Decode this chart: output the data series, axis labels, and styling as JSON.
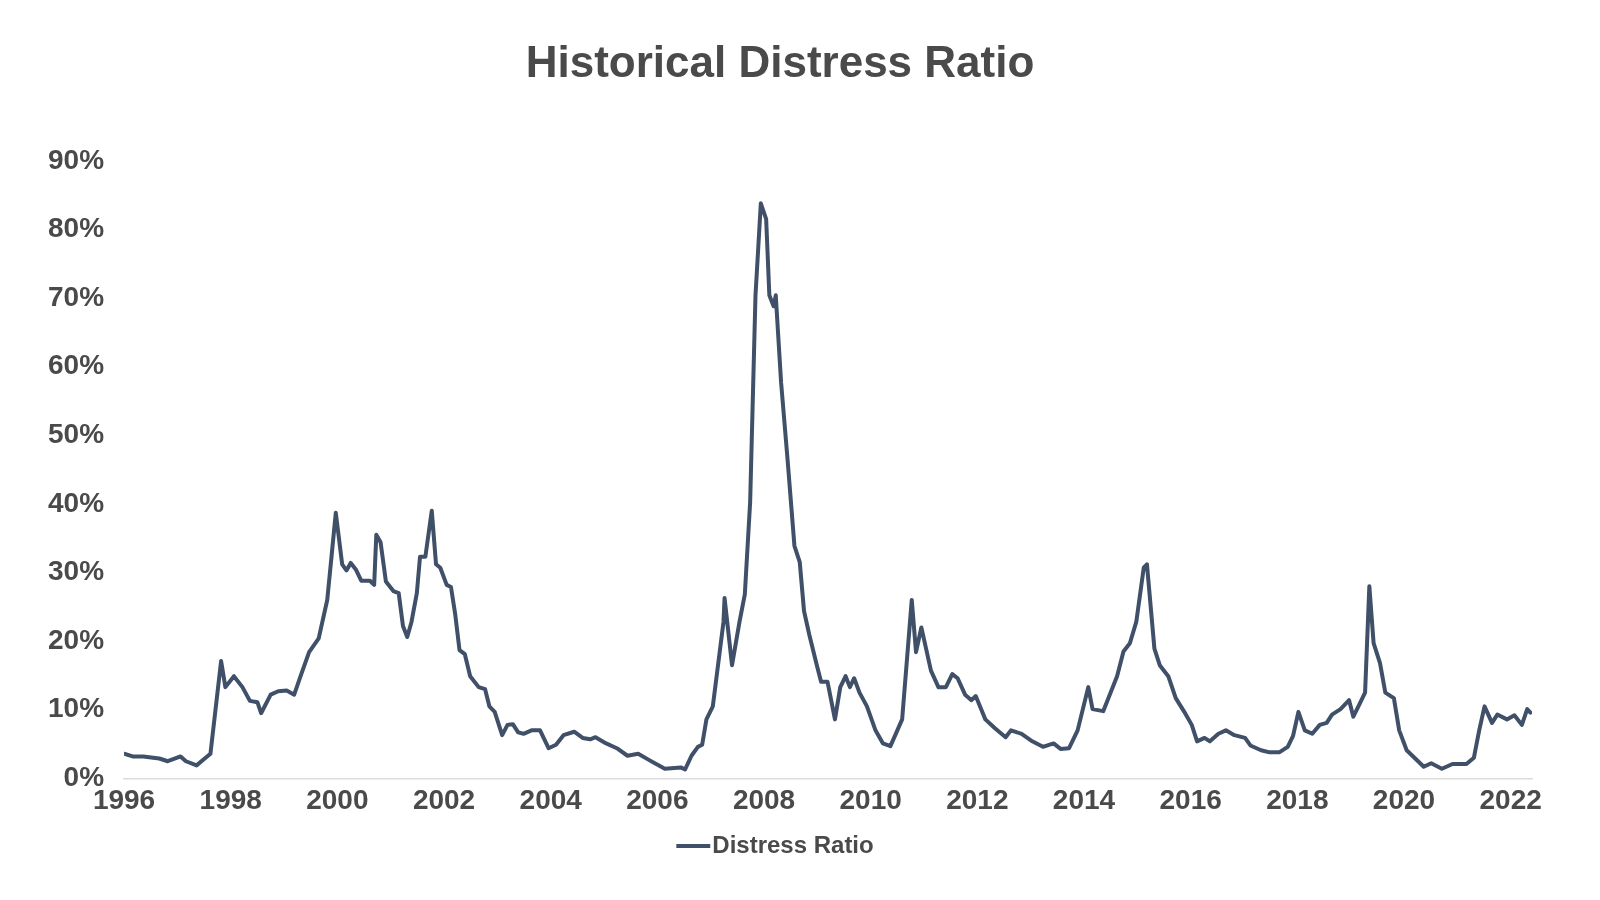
{
  "chart_data": {
    "type": "line",
    "title": "Historical Distress Ratio",
    "x": [
      1996,
      1996.16,
      1996.36,
      1996.66,
      1996.82,
      1997.06,
      1997.16,
      1997.36,
      1997.62,
      1997.82,
      1997.9,
      1998.06,
      1998.22,
      1998.36,
      1998.5,
      1998.57,
      1998.75,
      1998.89,
      1999.05,
      1999.19,
      1999.31,
      1999.47,
      1999.65,
      1999.81,
      1999.89,
      1999.97,
      2000.09,
      2000.17,
      2000.25,
      2000.35,
      2000.45,
      2000.61,
      2000.69,
      2000.73,
      2000.81,
      2000.91,
      2001.05,
      2001.15,
      2001.23,
      2001.31,
      2001.39,
      2001.49,
      2001.55,
      2001.65,
      2001.77,
      2001.85,
      2001.93,
      2002.05,
      2002.13,
      2002.21,
      2002.29,
      2002.39,
      2002.49,
      2002.65,
      2002.77,
      2002.85,
      2002.95,
      2003.09,
      2003.19,
      2003.29,
      2003.39,
      2003.49,
      2003.64,
      2003.8,
      2003.96,
      2004.1,
      2004.24,
      2004.44,
      2004.6,
      2004.74,
      2004.84,
      2005.04,
      2005.24,
      2005.44,
      2005.64,
      2005.84,
      2006.14,
      2006.44,
      2006.52,
      2006.64,
      2006.76,
      2006.84,
      2006.92,
      2007.04,
      2007.24,
      2007.26,
      2007.4,
      2007.54,
      2007.64,
      2007.74,
      2007.84,
      2007.94,
      2008.04,
      2008.1,
      2008.18,
      2008.22,
      2008.32,
      2008.44,
      2008.57,
      2008.67,
      2008.75,
      2008.85,
      2008.99,
      2009.07,
      2009.19,
      2009.33,
      2009.43,
      2009.53,
      2009.61,
      2009.69,
      2009.79,
      2009.93,
      2010.09,
      2010.23,
      2010.37,
      2010.59,
      2010.77,
      2010.85,
      2010.95,
      2011.13,
      2011.27,
      2011.41,
      2011.53,
      2011.63,
      2011.77,
      2011.89,
      2011.97,
      2012.07,
      2012.15,
      2012.33,
      2012.53,
      2012.63,
      2012.83,
      2013.03,
      2013.23,
      2013.43,
      2013.56,
      2013.72,
      2013.88,
      2014.08,
      2014.16,
      2014.36,
      2014.62,
      2014.74,
      2014.86,
      2014.98,
      2015.12,
      2015.18,
      2015.32,
      2015.42,
      2015.58,
      2015.72,
      2015.88,
      2016.02,
      2016.12,
      2016.26,
      2016.36,
      2016.52,
      2016.66,
      2016.82,
      2017.02,
      2017.12,
      2017.32,
      2017.48,
      2017.66,
      2017.82,
      2017.92,
      2018.02,
      2018.14,
      2018.28,
      2018.42,
      2018.55,
      2018.65,
      2018.81,
      2018.97,
      2019.05,
      2019.17,
      2019.27,
      2019.35,
      2019.43,
      2019.55,
      2019.65,
      2019.81,
      2019.91,
      2020.05,
      2020.21,
      2020.37,
      2020.51,
      2020.71,
      2020.91,
      2021.17,
      2021.31,
      2021.41,
      2021.51,
      2021.65,
      2021.75,
      2021.93,
      2022.07,
      2022.21,
      2022.31,
      2022.37
    ],
    "series": [
      {
        "name": "Distress Ratio",
        "color": "#3f5068",
        "values": [
          3.6,
          3.2,
          3.2,
          2.9,
          2.5,
          3.2,
          2.5,
          1.9,
          3.6,
          17.1,
          13.3,
          14.9,
          13.3,
          11.3,
          11.1,
          9.5,
          12.2,
          12.7,
          12.8,
          12.2,
          14.9,
          18.4,
          20.4,
          26,
          32.3,
          38.7,
          31.2,
          30.3,
          31.4,
          30.4,
          28.8,
          28.8,
          28.2,
          35.5,
          34.4,
          28.7,
          27.3,
          27,
          22.2,
          20.6,
          22.8,
          27,
          32.3,
          32.3,
          39,
          31.2,
          30.7,
          28.2,
          27.9,
          23.9,
          18.7,
          18.1,
          14.9,
          13.3,
          13,
          10.5,
          9.7,
          6.3,
          7.8,
          7.9,
          6.7,
          6.5,
          7,
          7,
          4.4,
          4.9,
          6.3,
          6.8,
          5.9,
          5.7,
          6,
          5.1,
          4.4,
          3.3,
          3.6,
          2.7,
          1.4,
          1.6,
          1.3,
          3.3,
          4.6,
          4.9,
          8.6,
          10.5,
          22.8,
          26.3,
          16.5,
          22.8,
          26.8,
          40.3,
          70.4,
          83.8,
          81.5,
          70.4,
          68.8,
          70.4,
          57.7,
          46.6,
          33.9,
          31.5,
          24.4,
          20.9,
          16.5,
          14.1,
          14.1,
          8.6,
          13.3,
          14.9,
          13.3,
          14.6,
          12.5,
          10.5,
          7,
          5.1,
          4.7,
          8.6,
          26,
          18.4,
          22,
          15.7,
          13.3,
          13.3,
          15.2,
          14.6,
          12.2,
          11.4,
          12,
          10.1,
          8.6,
          7.3,
          6,
          7,
          6.5,
          5.4,
          4.6,
          5.1,
          4.3,
          4.4,
          7,
          13.3,
          10.1,
          9.8,
          14.9,
          18.5,
          19.7,
          22.8,
          30.7,
          31.2,
          18.9,
          16.5,
          14.9,
          11.7,
          9.7,
          7.8,
          5.4,
          5.9,
          5.4,
          6.5,
          7,
          6.3,
          5.9,
          4.8,
          4.1,
          3.8,
          3.8,
          4.6,
          6.2,
          9.7,
          7,
          6.5,
          7.8,
          8.1,
          9.3,
          10.1,
          11.4,
          9,
          10.9,
          12.5,
          28,
          19.7,
          16.8,
          12.5,
          11.7,
          7,
          4.1,
          2.9,
          1.7,
          2.2,
          1.4,
          2.1,
          2.1,
          3,
          7,
          10.5,
          8.1,
          9.3,
          8.6,
          9.2,
          7.8,
          10.1,
          9.6
        ]
      }
    ],
    "xlim": [
      1996,
      2022.4
    ],
    "xticks": [
      1996,
      1998,
      2000,
      2002,
      2004,
      2006,
      2008,
      2010,
      2012,
      2014,
      2016,
      2018,
      2020,
      2022
    ],
    "ylim": [
      0,
      90
    ],
    "yticks": [
      {
        "value": 0,
        "label": "0%"
      },
      {
        "value": 10,
        "label": "10%"
      },
      {
        "value": 20,
        "label": "20%"
      },
      {
        "value": 30,
        "label": "30%"
      },
      {
        "value": 40,
        "label": "40%"
      },
      {
        "value": 50,
        "label": "50%"
      },
      {
        "value": 60,
        "label": "60%"
      },
      {
        "value": 70,
        "label": "70%"
      },
      {
        "value": 80,
        "label": "80%"
      },
      {
        "value": 90,
        "label": "90%"
      }
    ],
    "grid": false,
    "legend": "bottom",
    "marker": "none",
    "line_style": "solid"
  }
}
